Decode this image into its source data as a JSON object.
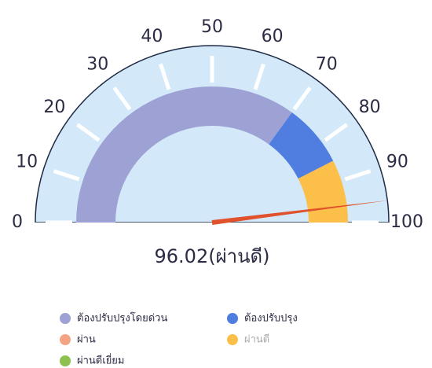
{
  "chart_data": {
    "type": "gauge",
    "value": 96.02,
    "value_label": "96.02(ผ่านดี)",
    "needle_color": "#e0522c",
    "xlim": [
      0,
      100
    ],
    "xticks": [
      0,
      10,
      20,
      30,
      40,
      50,
      60,
      70,
      80,
      90,
      100
    ],
    "bands": [
      {
        "color": "#9ea1d4",
        "from": 0,
        "to": 70
      },
      {
        "color": "#4f7ee0",
        "from": 70,
        "to": 85
      },
      {
        "color": "#fbbf4a",
        "from": 85,
        "to": 100
      }
    ],
    "legend": [
      {
        "name": "ต้องปรับปรุงโดยด่วน",
        "color": "#9ea1d4"
      },
      {
        "name": "ต้องปรับปรุง",
        "color": "#4f7ee0"
      },
      {
        "name": "ผ่าน",
        "color": "#f4a484"
      },
      {
        "name": "ผ่านดี",
        "color": "#fbbf4a",
        "muted": true
      },
      {
        "name": "ผ่านดีเยี่ยม",
        "color": "#8cc152"
      }
    ]
  }
}
